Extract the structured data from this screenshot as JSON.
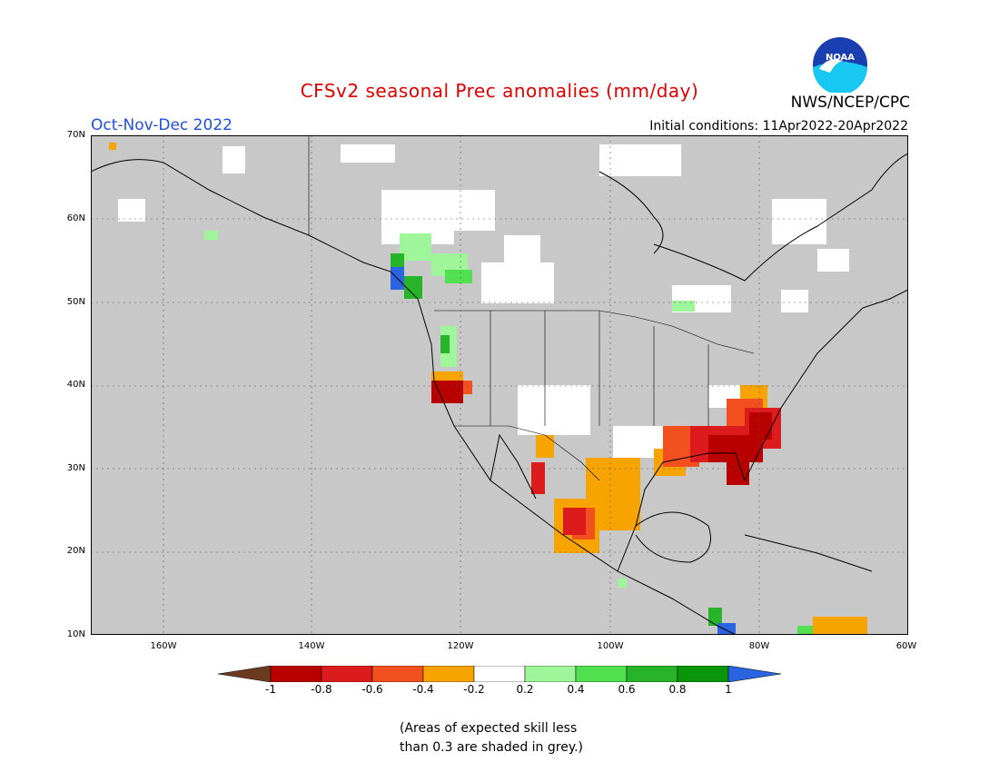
{
  "header": {
    "title": "CFSv2 seasonal Prec anomalies (mm/day)",
    "agency": "NWS/NCEP/CPC",
    "period": "Oct-Nov-Dec 2022",
    "init_conditions": "Initial conditions: 11Apr2022-20Apr2022",
    "logo_text": "NOAA"
  },
  "map": {
    "lat_labels": [
      "70N",
      "60N",
      "50N",
      "40N",
      "30N",
      "20N",
      "10N"
    ],
    "lon_labels": [
      "160W",
      "140W",
      "120W",
      "100W",
      "80W",
      "60W"
    ],
    "ocean_color": "#c8c8c8",
    "land_outline_color": "#000000"
  },
  "legend": {
    "tick_labels": [
      "-1",
      "-0.8",
      "-0.6",
      "-0.4",
      "-0.2",
      "0.2",
      "0.4",
      "0.6",
      "0.8",
      "1"
    ],
    "colors": [
      "#6b3a1f",
      "#b80000",
      "#dc1c1c",
      "#f2501e",
      "#f7a400",
      "#ffffff",
      "#9ef59a",
      "#50e050",
      "#28b428",
      "#0a960a",
      "#2a64e0"
    ],
    "note_line1": "(Areas of expected skill less",
    "note_line2": "than 0.3 are shaded in grey.)"
  }
}
